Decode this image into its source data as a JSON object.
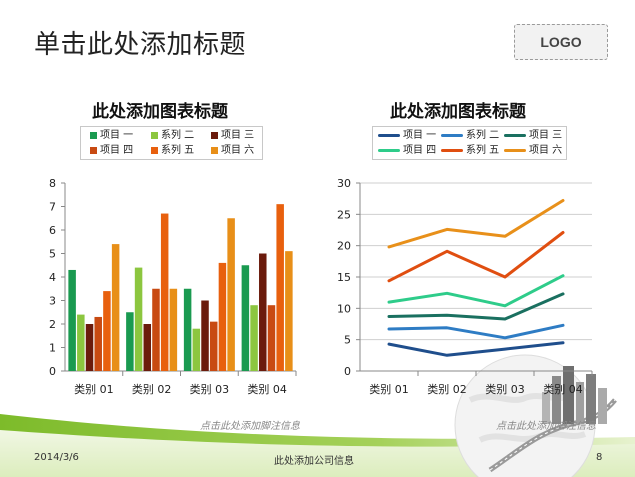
{
  "slide": {
    "title": "单击此处添加标题",
    "logo": "LOGO",
    "footer": {
      "date": "2014/3/6",
      "company": "此处添加公司信息",
      "page_number": "8"
    }
  },
  "left_chart": {
    "title": "此处添加图表标题",
    "footnote": "点击此处添加脚注信息",
    "legend": [
      {
        "name": "项目 一",
        "color": "#1a9a50"
      },
      {
        "name": "系列 二",
        "color": "#8cc63f"
      },
      {
        "name": "项目 三",
        "color": "#6b1b0c"
      },
      {
        "name": "项目 四",
        "color": "#c84a12"
      },
      {
        "name": "系列 五",
        "color": "#e8600e"
      },
      {
        "name": "项目 六",
        "color": "#e88f18"
      }
    ]
  },
  "right_chart": {
    "title": "此处添加图表标题",
    "footnote": "点击此处添加脚注信息",
    "legend": [
      {
        "name": "项目 一",
        "color": "#1f4e8c"
      },
      {
        "name": "系列 二",
        "color": "#2e7cc4"
      },
      {
        "name": "项目 三",
        "color": "#1a7060"
      },
      {
        "name": "项目 四",
        "color": "#2ecc8a"
      },
      {
        "name": "系列 五",
        "color": "#e04e10"
      },
      {
        "name": "项目 六",
        "color": "#e8901a"
      }
    ]
  },
  "chart_data": [
    {
      "type": "bar",
      "title": "此处添加图表标题",
      "categories": [
        "类别 01",
        "类别 02",
        "类别 03",
        "类别 04"
      ],
      "ylim": [
        0,
        8
      ],
      "yticks": [
        0,
        1,
        2,
        3,
        4,
        5,
        6,
        7,
        8
      ],
      "series": [
        {
          "name": "项目 一",
          "values": [
            4.3,
            2.5,
            3.5,
            4.5
          ]
        },
        {
          "name": "系列 二",
          "values": [
            2.4,
            4.4,
            1.8,
            2.8
          ]
        },
        {
          "name": "项目 三",
          "values": [
            2.0,
            2.0,
            3.0,
            5.0
          ]
        },
        {
          "name": "项目 四",
          "values": [
            2.3,
            3.5,
            2.1,
            2.8
          ]
        },
        {
          "name": "系列 五",
          "values": [
            3.4,
            6.7,
            4.6,
            7.1
          ]
        },
        {
          "name": "项目 六",
          "values": [
            5.4,
            3.5,
            6.5,
            5.1
          ]
        }
      ]
    },
    {
      "type": "line",
      "title": "此处添加图表标题",
      "categories": [
        "类别 01",
        "类别 02",
        "类别 03",
        "类别 04"
      ],
      "ylim": [
        0,
        30
      ],
      "yticks": [
        0,
        5,
        10,
        15,
        20,
        25,
        30
      ],
      "series": [
        {
          "name": "项目 一",
          "values": [
            4.3,
            2.5,
            3.5,
            4.5
          ]
        },
        {
          "name": "系列 二",
          "values": [
            6.7,
            6.9,
            5.3,
            7.3
          ]
        },
        {
          "name": "项目 三",
          "values": [
            8.7,
            8.9,
            8.3,
            12.3
          ]
        },
        {
          "name": "项目 四",
          "values": [
            11.0,
            12.4,
            10.4,
            15.2
          ]
        },
        {
          "name": "系列 五",
          "values": [
            14.4,
            19.1,
            15.0,
            22.1
          ]
        },
        {
          "name": "项目 六",
          "values": [
            19.8,
            22.6,
            21.5,
            27.2
          ]
        }
      ]
    }
  ]
}
